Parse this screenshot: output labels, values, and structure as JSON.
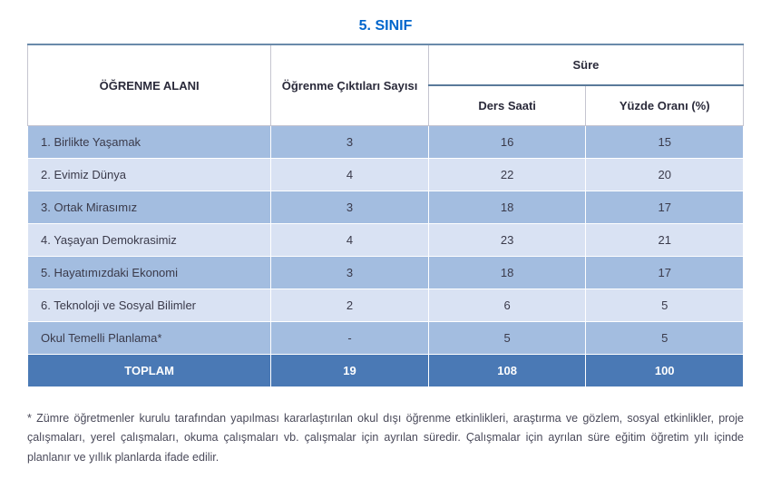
{
  "title": "5. SINIF",
  "headers": {
    "col1": "ÖĞRENME ALANI",
    "col2": "Öğrenme Çıktıları Sayısı",
    "col3_group": "Süre",
    "col3a": "Ders Saati",
    "col3b": "Yüzde Oranı (%)"
  },
  "rows": [
    {
      "label": "1. Birlikte Yaşamak",
      "outcomes": "3",
      "hours": "16",
      "pct": "15"
    },
    {
      "label": "2. Evimiz Dünya",
      "outcomes": "4",
      "hours": "22",
      "pct": "20"
    },
    {
      "label": "3. Ortak Mirasımız",
      "outcomes": "3",
      "hours": "18",
      "pct": "17"
    },
    {
      "label": "4. Yaşayan Demokrasimiz",
      "outcomes": "4",
      "hours": "23",
      "pct": "21"
    },
    {
      "label": "5. Hayatımızdaki Ekonomi",
      "outcomes": "3",
      "hours": "18",
      "pct": "17"
    },
    {
      "label": "6. Teknoloji ve Sosyal Bilimler",
      "outcomes": "2",
      "hours": "6",
      "pct": "5"
    },
    {
      "label": "Okul Temelli Planlama*",
      "outcomes": "-",
      "hours": "5",
      "pct": "5"
    }
  ],
  "summary": {
    "label": "TOPLAM",
    "outcomes": "19",
    "hours": "108",
    "pct": "100"
  },
  "footnote": "* Zümre öğretmenler kurulu tarafından yapılması kararlaştırılan okul dışı öğrenme etkinlikleri, araştırma ve gözlem, sosyal etkinlikler, proje çalışmaları, yerel çalışmaları, okuma çalışmaları vb. çalışmalar için ayrılan süredir. Çalışmalar için ayrılan süre eğitim öğretim yılı içinde planlanır  ve yıllık planlarda ifade edilir.",
  "style": {
    "type": "table",
    "title_color": "#0066cc",
    "title_fontsize": 16,
    "text_color": "#3a3a4a",
    "body_fontsize": 13,
    "footnote_fontsize": 12.5,
    "row_colors_alt": [
      "#a3bde0",
      "#d9e2f3"
    ],
    "summary_row_bg": "#4a79b5",
    "summary_row_text": "#ffffff",
    "header_bg": "#ffffff",
    "header_border": "#c5c5d0",
    "header_top_border": "#6a8aaa",
    "cell_border": "#ffffff",
    "columns": [
      {
        "width_pct": 34,
        "align": "left"
      },
      {
        "width_pct": 22,
        "align": "center"
      },
      {
        "width_pct": 22,
        "align": "center"
      },
      {
        "width_pct": 22,
        "align": "center"
      }
    ]
  }
}
